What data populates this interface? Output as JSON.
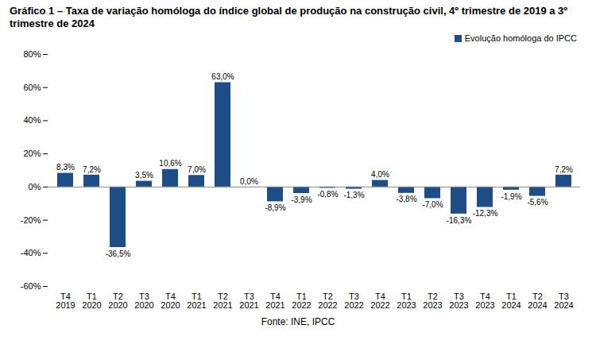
{
  "chart_data": {
    "type": "bar",
    "title": "Gráfico 1 – Taxa de variação homóloga do índice global de produção na construção civil, 4º trimestre de 2019 a 3º trimestre de 2024",
    "source": "Fonte: INE, IPCC",
    "categories": [
      "T4\n2019",
      "T1\n2020",
      "T2\n2020",
      "T3\n2020",
      "T4\n2020",
      "T1\n2021",
      "T2\n2021",
      "T3\n2021",
      "T4\n2021",
      "T1\n2022",
      "T2\n2022",
      "T3\n2022",
      "T4\n2022",
      "T1\n2023",
      "T2\n2023",
      "T3\n2023",
      "T4\n2023",
      "T1\n2024",
      "T2\n2024",
      "T3\n2024"
    ],
    "series": [
      {
        "name": "Evolução homóloga do IPCC",
        "color": "#1f4e86",
        "values": [
          8.3,
          7.2,
          -36.5,
          3.5,
          10.6,
          7.0,
          63.0,
          0.0,
          -8.9,
          -3.9,
          -0.8,
          -1.3,
          4.0,
          -3.8,
          -7.0,
          -16.3,
          -12.3,
          -1.9,
          -5.6,
          7.2
        ],
        "value_labels": [
          "8,3%",
          "7,2%",
          "-36,5%",
          "3,5%",
          "10,6%",
          "7,0%",
          "63,0%",
          "0,0%",
          "-8,9%",
          "-3,9%",
          "-0,8%",
          "-1,3%",
          "4,0%",
          "-3,8%",
          "-7,0%",
          "-16,3%",
          "-12,3%",
          "-1,9%",
          "-5,6%",
          "7,2%"
        ]
      }
    ],
    "ylim": [
      -60,
      80
    ],
    "yticks": [
      {
        "value": -60,
        "label": "-60%"
      },
      {
        "value": -40,
        "label": "-40%"
      },
      {
        "value": -20,
        "label": "-20%"
      },
      {
        "value": 0,
        "label": "0%"
      },
      {
        "value": 20,
        "label": "20%"
      },
      {
        "value": 40,
        "label": "40%"
      },
      {
        "value": 60,
        "label": "60%"
      },
      {
        "value": 80,
        "label": "80%"
      }
    ],
    "grid": false,
    "legend": "top-right",
    "data_labels": true
  }
}
